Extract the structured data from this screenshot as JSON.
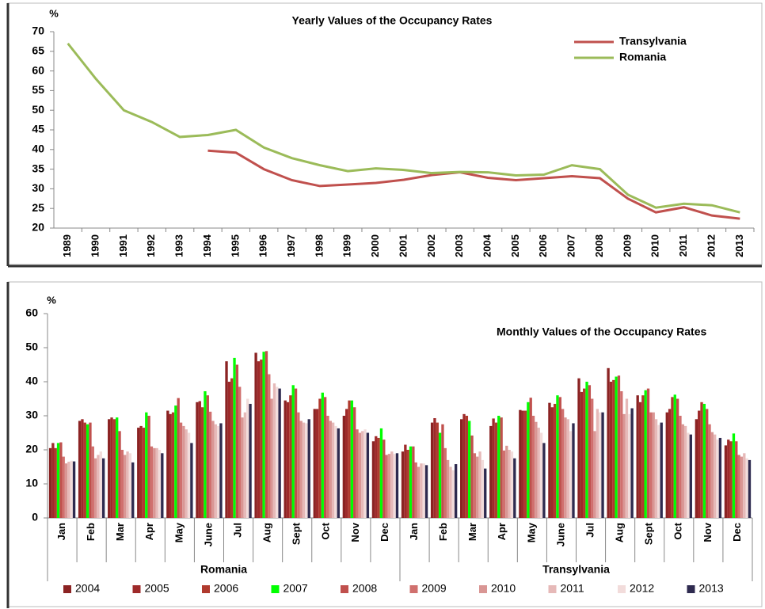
{
  "chart_data": [
    {
      "type": "line",
      "title": "Yearly Values of the Occupancy Rates",
      "y_label": "%",
      "categories": [
        "1989",
        "1990",
        "1991",
        "1992",
        "1993",
        "1994",
        "1995",
        "1996",
        "1997",
        "1998",
        "1999",
        "2000",
        "2001",
        "2002",
        "2003",
        "2004",
        "2005",
        "2006",
        "2007",
        "2008",
        "2009",
        "2010",
        "2011",
        "2012",
        "2013"
      ],
      "series": [
        {
          "name": "Transylvania",
          "color": "#c0504d",
          "values": [
            null,
            null,
            null,
            null,
            null,
            39.7,
            39.2,
            35,
            32.2,
            30.7,
            31.1,
            31.5,
            32.3,
            33.5,
            34.2,
            32.8,
            32.2,
            32.7,
            33.2,
            32.7,
            27.5,
            24,
            25.3,
            23.2,
            22.4
          ]
        },
        {
          "name": "Romania",
          "color": "#9bbb59",
          "values": [
            67,
            58,
            50,
            47,
            43.2,
            43.7,
            45,
            40.5,
            37.8,
            36,
            34.5,
            35.2,
            34.8,
            34,
            34.3,
            34.2,
            33.4,
            33.6,
            36,
            35,
            28.5,
            25.2,
            26.2,
            25.8,
            24
          ]
        }
      ],
      "ylim": [
        20,
        70
      ],
      "yticks": [
        20,
        25,
        30,
        35,
        40,
        45,
        50,
        55,
        60,
        65,
        70
      ],
      "legend": "upper right"
    },
    {
      "type": "grouped_bar",
      "title": "Monthly Values of the Occupancy Rates",
      "y_label": "%",
      "categories": [
        "Jan",
        "Feb",
        "Mar",
        "Apr",
        "May",
        "June",
        "Jul",
        "Aug",
        "Sept",
        "Oct",
        "Nov",
        "Dec",
        "Jan",
        "Feb",
        "Mar",
        "Apr",
        "May",
        "June",
        "Jul",
        "Aug",
        "Sept",
        "Oct",
        "Nov",
        "Dec"
      ],
      "category_groups": [
        "Romania",
        "Transylvania"
      ],
      "series": [
        {
          "name": "2004",
          "color": "#8b2323",
          "values": [
            20.5,
            28.5,
            29,
            26.5,
            31.5,
            34,
            46,
            48.5,
            34.5,
            32,
            30,
            22.5,
            19.5,
            28,
            29,
            27,
            31.7,
            33.8,
            41,
            44,
            36,
            31,
            29,
            21.3
          ]
        },
        {
          "name": "2005",
          "color": "#9e2a2a",
          "values": [
            22,
            29,
            29.5,
            27,
            30.5,
            34.3,
            40,
            46,
            34,
            32,
            32,
            24,
            21.5,
            29.3,
            30.5,
            29.2,
            31.5,
            32.5,
            37,
            40,
            34,
            32,
            31.5,
            23
          ]
        },
        {
          "name": "2006",
          "color": "#b03a2e",
          "values": [
            20.5,
            28,
            29,
            26.5,
            31,
            32.5,
            41,
            46.5,
            36,
            35,
            34.5,
            23.5,
            20,
            28,
            30,
            28,
            31.5,
            33.5,
            38,
            40.5,
            36,
            35.5,
            34,
            22.5
          ]
        },
        {
          "name": "2007",
          "color": "#00ff00",
          "values": [
            22,
            27.5,
            29.5,
            31,
            33,
            37.2,
            47,
            48.8,
            39,
            36.8,
            34.5,
            26.3,
            21,
            25,
            28.5,
            30,
            34,
            36,
            40,
            41.5,
            37.5,
            36.2,
            33.5,
            24.8
          ]
        },
        {
          "name": "2008",
          "color": "#c0504d",
          "values": [
            22.2,
            28,
            25.5,
            30,
            35.2,
            36,
            45,
            49,
            38,
            35.5,
            32.5,
            23,
            21,
            27.5,
            24.2,
            29.5,
            35.3,
            35.5,
            39,
            41.8,
            38,
            35,
            32,
            22.5
          ]
        },
        {
          "name": "2009",
          "color": "#d0706e",
          "values": [
            18,
            21,
            20,
            21,
            28,
            31.2,
            38.5,
            42.2,
            31,
            30,
            26,
            18.5,
            16.3,
            20.5,
            19,
            19.8,
            30,
            32,
            35,
            37.2,
            31,
            30,
            27.5,
            18.5
          ]
        },
        {
          "name": "2010",
          "color": "#d99694",
          "values": [
            16,
            17.5,
            18.5,
            20.5,
            27,
            28.5,
            29.5,
            35,
            28.5,
            28.5,
            25,
            18.8,
            15,
            17,
            18,
            21.2,
            28.2,
            29.5,
            25.5,
            30.5,
            31,
            27.5,
            25.2,
            18
          ]
        },
        {
          "name": "2011",
          "color": "#e6b9b8",
          "values": [
            16.5,
            18.5,
            19.5,
            20.5,
            26,
            27.5,
            31,
            39.5,
            28,
            28,
            25.5,
            19.5,
            16,
            15,
            19.5,
            20,
            26.5,
            29,
            32,
            35,
            29,
            27,
            24.5,
            19
          ]
        },
        {
          "name": "2012",
          "color": "#f2dcdb",
          "values": [
            16.8,
            19.5,
            19,
            20,
            25,
            27,
            35,
            38.5,
            27.8,
            27,
            26,
            18.8,
            16,
            14,
            17,
            19.5,
            25,
            25.5,
            31,
            30.5,
            27.3,
            25,
            23,
            17.5
          ]
        },
        {
          "name": "2013",
          "color": "#2e2a4f",
          "values": [
            16.6,
            17.5,
            16.3,
            19,
            22,
            27.8,
            33.5,
            38,
            29,
            26.3,
            25,
            19,
            15.5,
            15.8,
            14.5,
            17.5,
            22,
            27.8,
            31,
            32.2,
            28,
            24.5,
            23.5,
            17
          ]
        }
      ],
      "ylim": [
        0,
        60
      ],
      "yticks": [
        0,
        10,
        20,
        30,
        40,
        50,
        60
      ],
      "legend": "bottom"
    }
  ]
}
